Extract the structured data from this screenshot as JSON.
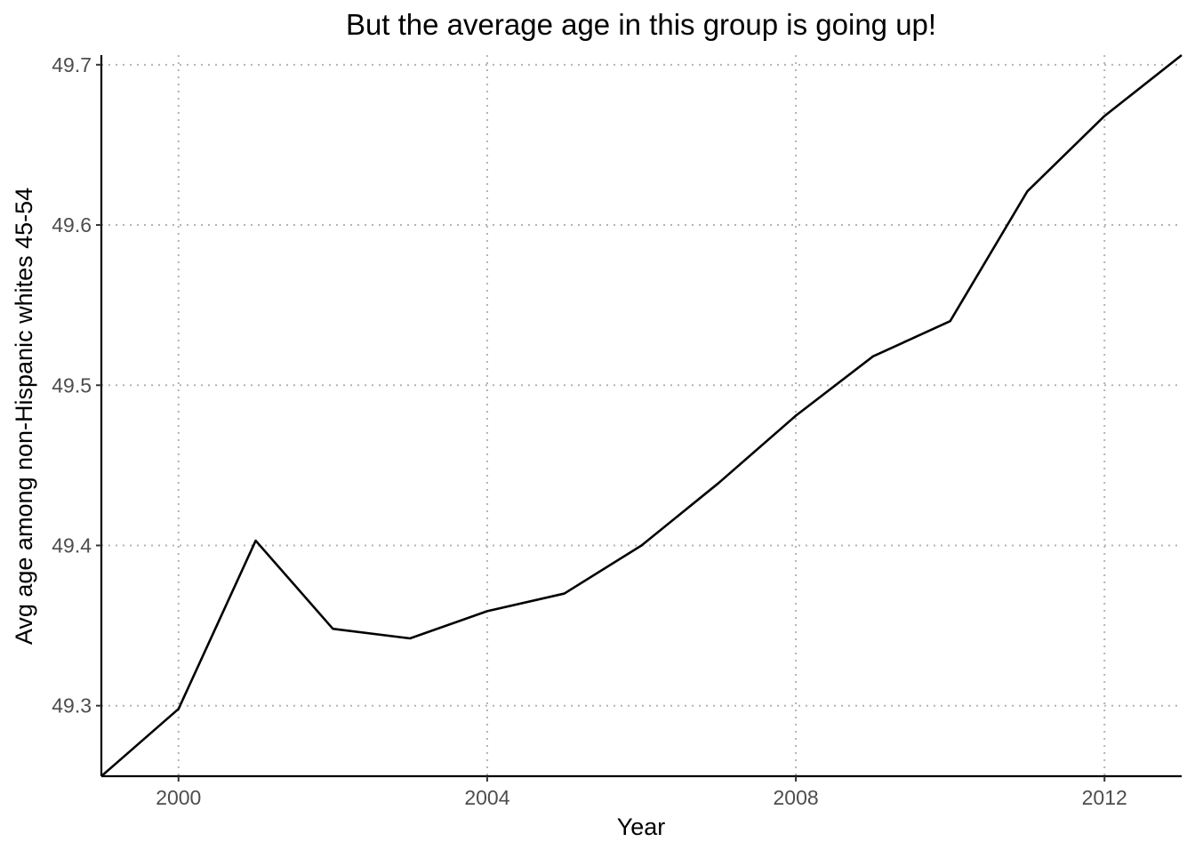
{
  "chart_data": {
    "type": "line",
    "title": "But the average age in this group is going up!",
    "xlabel": "Year",
    "ylabel": "Avg age among non-Hispanic whites 45-54",
    "x": [
      1999,
      2000,
      2001,
      2002,
      2003,
      2004,
      2005,
      2006,
      2007,
      2008,
      2009,
      2010,
      2011,
      2012,
      2013
    ],
    "series": [
      {
        "values": [
          49.256,
          49.298,
          49.403,
          49.348,
          49.342,
          49.359,
          49.37,
          49.4,
          49.439,
          49.481,
          49.518,
          49.54,
          49.621,
          49.668,
          49.706
        ]
      }
    ],
    "xlim": [
      1999,
      2013
    ],
    "ylim": [
      49.256,
      49.706
    ],
    "x_ticks": [
      2000,
      2004,
      2008,
      2012
    ],
    "x_tick_labels": [
      "2000",
      "2004",
      "2008",
      "2012"
    ],
    "y_ticks": [
      49.3,
      49.4,
      49.5,
      49.6,
      49.7
    ],
    "y_tick_labels": [
      "49.3",
      "49.4",
      "49.5",
      "49.6",
      "49.7"
    ],
    "grid": true,
    "line_color": "#000000",
    "grid_color": "#b3b3b3"
  }
}
